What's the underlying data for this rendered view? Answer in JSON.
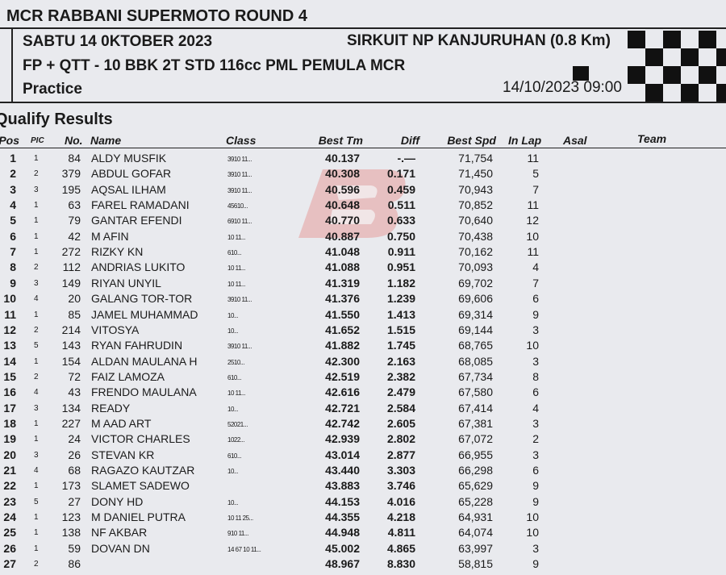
{
  "header": {
    "event_title": "MCR RABBANI SUPERMOTO ROUND 4",
    "date_line": "SABTU 14 0KTOBER 2023",
    "circuit": "SIRKUIT NP KANJURUHAN  (0.8 Km)",
    "class_line": "FP + QTT - 10 BBK 2T STD 116cc PML PEMULA MCR",
    "session": "Practice",
    "datetime": "14/10/2023  09:00"
  },
  "section_title": "Qualify Results",
  "columns": {
    "pos": "Pos",
    "pic": "PIC",
    "no": "No.",
    "name": "Name",
    "class": "Class",
    "best_tm": "Best Tm",
    "diff": "Diff",
    "best_spd": "Best Spd",
    "in_lap": "In Lap",
    "asal": "Asal",
    "team": "Team"
  },
  "colors": {
    "watermark": "#e0403a",
    "text": "#1a1a1a",
    "paper": "#e9eaee"
  },
  "rows": [
    {
      "pos": "1",
      "pic": "1",
      "no": "84",
      "name": "ALDY MUSFIK",
      "class": "3910 11...",
      "best_tm": "40.137",
      "diff": "-.—",
      "best_spd": "71,754",
      "in_lap": "11"
    },
    {
      "pos": "2",
      "pic": "2",
      "no": "379",
      "name": "ABDUL GOFAR",
      "class": "3910 11...",
      "best_tm": "40.308",
      "diff": "0.171",
      "best_spd": "71,450",
      "in_lap": "5"
    },
    {
      "pos": "3",
      "pic": "3",
      "no": "195",
      "name": "AQSAL ILHAM",
      "class": "3910 11...",
      "best_tm": "40.596",
      "diff": "0.459",
      "best_spd": "70,943",
      "in_lap": "7"
    },
    {
      "pos": "4",
      "pic": "1",
      "no": "63",
      "name": "FAREL RAMADANI",
      "class": "45610...",
      "best_tm": "40.648",
      "diff": "0.511",
      "best_spd": "70,852",
      "in_lap": "11"
    },
    {
      "pos": "5",
      "pic": "1",
      "no": "79",
      "name": "GANTAR EFENDI",
      "class": "6910 11...",
      "best_tm": "40.770",
      "diff": "0.633",
      "best_spd": "70,640",
      "in_lap": "12"
    },
    {
      "pos": "6",
      "pic": "1",
      "no": "42",
      "name": "M AFIN",
      "class": "10 11...",
      "best_tm": "40.887",
      "diff": "0.750",
      "best_spd": "70,438",
      "in_lap": "10"
    },
    {
      "pos": "7",
      "pic": "1",
      "no": "272",
      "name": "RIZKY KN",
      "class": "610...",
      "best_tm": "41.048",
      "diff": "0.911",
      "best_spd": "70,162",
      "in_lap": "11"
    },
    {
      "pos": "8",
      "pic": "2",
      "no": "112",
      "name": "ANDRIAS LUKITO",
      "class": "10 11...",
      "best_tm": "41.088",
      "diff": "0.951",
      "best_spd": "70,093",
      "in_lap": "4"
    },
    {
      "pos": "9",
      "pic": "3",
      "no": "149",
      "name": "RIYAN UNYIL",
      "class": "10 11...",
      "best_tm": "41.319",
      "diff": "1.182",
      "best_spd": "69,702",
      "in_lap": "7"
    },
    {
      "pos": "10",
      "pic": "4",
      "no": "20",
      "name": "GALANG TOR-TOR",
      "class": "3910 11...",
      "best_tm": "41.376",
      "diff": "1.239",
      "best_spd": "69,606",
      "in_lap": "6"
    },
    {
      "pos": "11",
      "pic": "1",
      "no": "85",
      "name": "JAMEL MUHAMMAD",
      "class": "10...",
      "best_tm": "41.550",
      "diff": "1.413",
      "best_spd": "69,314",
      "in_lap": "9"
    },
    {
      "pos": "12",
      "pic": "2",
      "no": "214",
      "name": "VITOSYA",
      "class": "10...",
      "best_tm": "41.652",
      "diff": "1.515",
      "best_spd": "69,144",
      "in_lap": "3"
    },
    {
      "pos": "13",
      "pic": "5",
      "no": "143",
      "name": "RYAN FAHRUDIN",
      "class": "3910 11...",
      "best_tm": "41.882",
      "diff": "1.745",
      "best_spd": "68,765",
      "in_lap": "10"
    },
    {
      "pos": "14",
      "pic": "1",
      "no": "154",
      "name": "ALDAN MAULANA H",
      "class": "2510...",
      "best_tm": "42.300",
      "diff": "2.163",
      "best_spd": "68,085",
      "in_lap": "3"
    },
    {
      "pos": "15",
      "pic": "2",
      "no": "72",
      "name": "FAIZ LAMOZA",
      "class": "610...",
      "best_tm": "42.519",
      "diff": "2.382",
      "best_spd": "67,734",
      "in_lap": "8"
    },
    {
      "pos": "16",
      "pic": "4",
      "no": "43",
      "name": "FRENDO MAULANA",
      "class": "10 11...",
      "best_tm": "42.616",
      "diff": "2.479",
      "best_spd": "67,580",
      "in_lap": "6"
    },
    {
      "pos": "17",
      "pic": "3",
      "no": "134",
      "name": "READY",
      "class": "10...",
      "best_tm": "42.721",
      "diff": "2.584",
      "best_spd": "67,414",
      "in_lap": "4"
    },
    {
      "pos": "18",
      "pic": "1",
      "no": "227",
      "name": "M AAD ART",
      "class": "52021...",
      "best_tm": "42.742",
      "diff": "2.605",
      "best_spd": "67,381",
      "in_lap": "3"
    },
    {
      "pos": "19",
      "pic": "1",
      "no": "24",
      "name": "VICTOR CHARLES",
      "class": "1022...",
      "best_tm": "42.939",
      "diff": "2.802",
      "best_spd": "67,072",
      "in_lap": "2"
    },
    {
      "pos": "20",
      "pic": "3",
      "no": "26",
      "name": "STEVAN KR",
      "class": "610...",
      "best_tm": "43.014",
      "diff": "2.877",
      "best_spd": "66,955",
      "in_lap": "3"
    },
    {
      "pos": "21",
      "pic": "4",
      "no": "68",
      "name": "RAGAZO KAUTZAR",
      "class": "10...",
      "best_tm": "43.440",
      "diff": "3.303",
      "best_spd": "66,298",
      "in_lap": "6"
    },
    {
      "pos": "22",
      "pic": "1",
      "no": "173",
      "name": "SLAMET SADEWO",
      "class": "",
      "best_tm": "43.883",
      "diff": "3.746",
      "best_spd": "65,629",
      "in_lap": "9"
    },
    {
      "pos": "23",
      "pic": "5",
      "no": "27",
      "name": "DONY HD",
      "class": "10...",
      "best_tm": "44.153",
      "diff": "4.016",
      "best_spd": "65,228",
      "in_lap": "9"
    },
    {
      "pos": "24",
      "pic": "1",
      "no": "123",
      "name": "M DANIEL PUTRA",
      "class": "10 11 25...",
      "best_tm": "44.355",
      "diff": "4.218",
      "best_spd": "64,931",
      "in_lap": "10"
    },
    {
      "pos": "25",
      "pic": "1",
      "no": "138",
      "name": "NF AKBAR",
      "class": "910 11...",
      "best_tm": "44.948",
      "diff": "4.811",
      "best_spd": "64,074",
      "in_lap": "10"
    },
    {
      "pos": "26",
      "pic": "1",
      "no": "59",
      "name": "DOVAN DN",
      "class": "14 67 10 11...",
      "best_tm": "45.002",
      "diff": "4.865",
      "best_spd": "63,997",
      "in_lap": "3"
    },
    {
      "pos": "27",
      "pic": "2",
      "no": "86",
      "name": "",
      "class": "",
      "best_tm": "48.967",
      "diff": "8.830",
      "best_spd": "58,815",
      "in_lap": "9"
    }
  ]
}
